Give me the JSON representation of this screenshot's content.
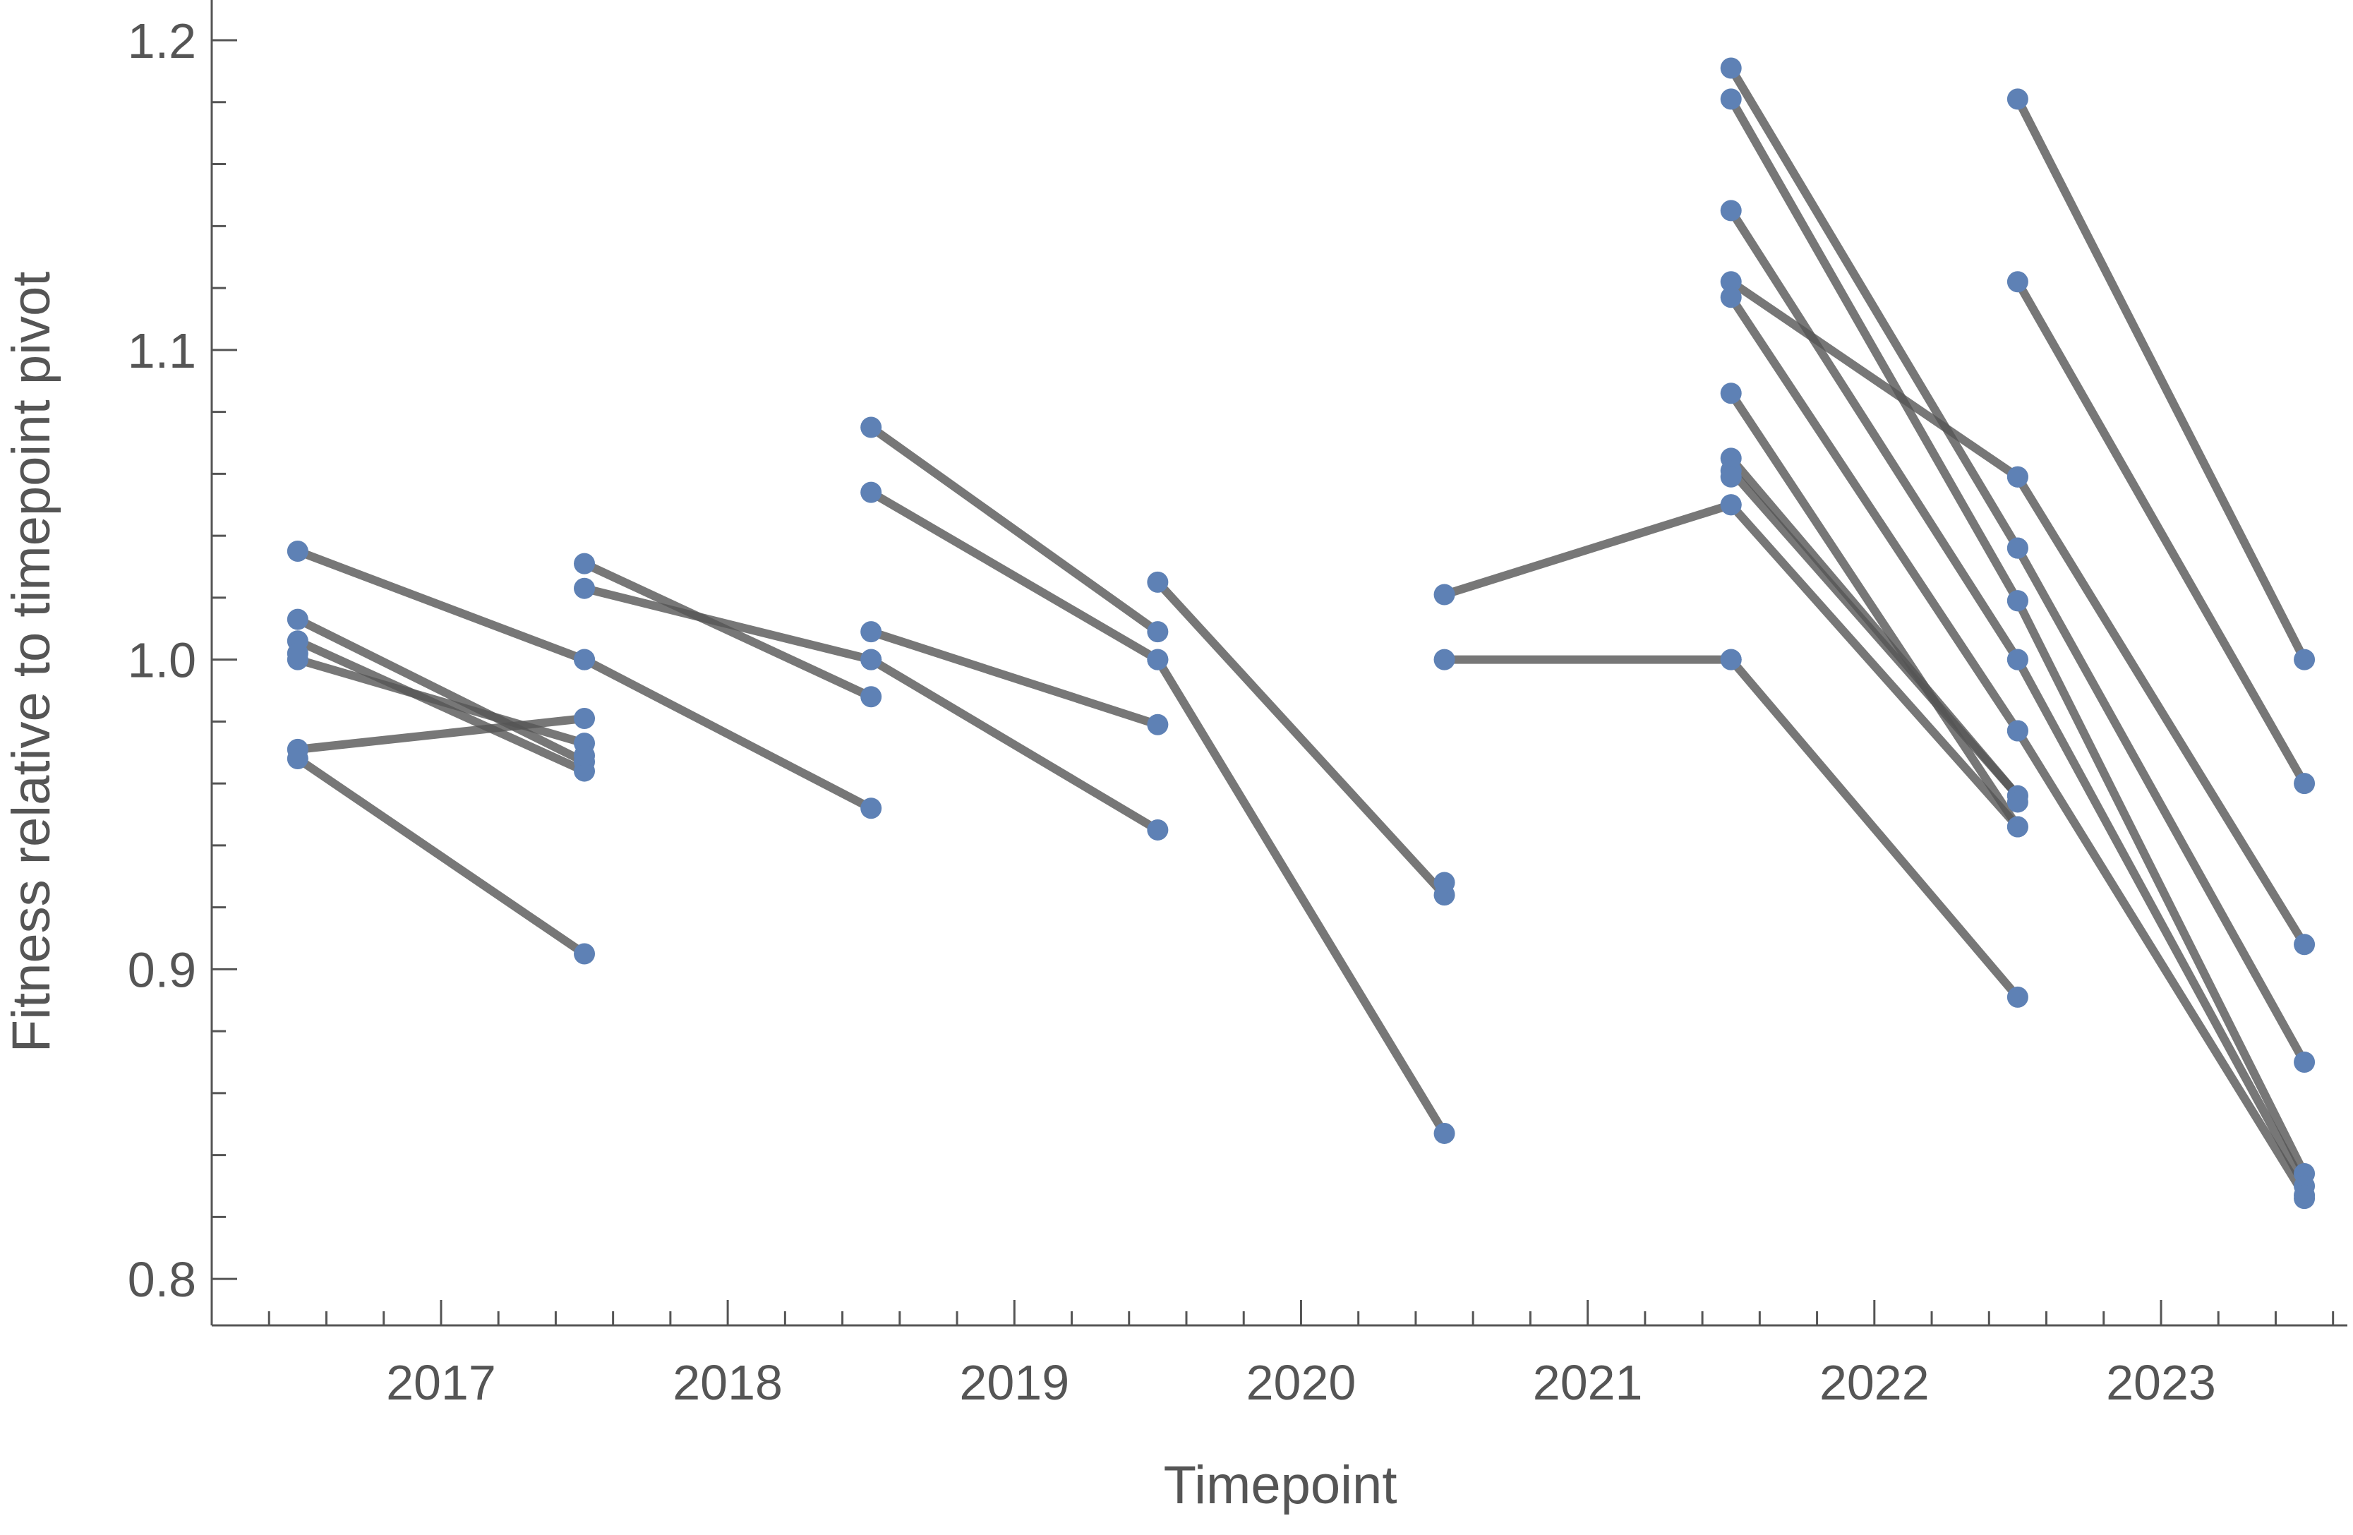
{
  "chart_data": {
    "type": "line",
    "xlabel": "Timepoint",
    "ylabel": "Fitness relative to timepoint pivot",
    "xlim": [
      2016.2,
      2023.65
    ],
    "ylim": [
      0.785,
      1.213
    ],
    "x_ticks": [
      2017,
      2018,
      2019,
      2020,
      2021,
      2022,
      2023
    ],
    "y_ticks": [
      0.8,
      0.9,
      1.0,
      1.1,
      1.2
    ],
    "y_tick_labels": [
      "0.8",
      "0.9",
      "1.0",
      "1.1",
      "1.2"
    ],
    "grid": false,
    "legend": "none",
    "colors": {
      "line": "#555555",
      "point": "#5e81b5",
      "axis": "#555555"
    },
    "segments": [
      {
        "x": [
          2016.5,
          2017.5
        ],
        "y": [
          1.035,
          1.0
        ]
      },
      {
        "x": [
          2016.5,
          2017.5
        ],
        "y": [
          1.013,
          0.967
        ]
      },
      {
        "x": [
          2016.5,
          2017.5
        ],
        "y": [
          1.006,
          0.964
        ]
      },
      {
        "x": [
          2016.5,
          2017.5
        ],
        "y": [
          1.0,
          0.973
        ]
      },
      {
        "x": [
          2016.5,
          2017.5
        ],
        "y": [
          0.971,
          0.981
        ]
      },
      {
        "x": [
          2016.5,
          2017.5
        ],
        "y": [
          0.968,
          0.905
        ]
      },
      {
        "x": [
          2017.5,
          2018.5
        ],
        "y": [
          1.031,
          0.988
        ]
      },
      {
        "x": [
          2017.5,
          2018.5
        ],
        "y": [
          1.023,
          1.0
        ]
      },
      {
        "x": [
          2017.5,
          2018.5
        ],
        "y": [
          1.0,
          0.952
        ]
      },
      {
        "x": [
          2018.5,
          2019.5
        ],
        "y": [
          1.075,
          1.009
        ]
      },
      {
        "x": [
          2018.5,
          2019.5
        ],
        "y": [
          1.054,
          1.0
        ]
      },
      {
        "x": [
          2018.5,
          2019.5
        ],
        "y": [
          1.009,
          0.979
        ]
      },
      {
        "x": [
          2018.5,
          2019.5
        ],
        "y": [
          1.0,
          0.945
        ]
      },
      {
        "x": [
          2019.5,
          2020.5
        ],
        "y": [
          1.025,
          0.924
        ]
      },
      {
        "x": [
          2019.5,
          2020.5
        ],
        "y": [
          1.0,
          0.847
        ]
      },
      {
        "x": [
          2020.5,
          2021.5
        ],
        "y": [
          1.021,
          1.05
        ]
      },
      {
        "x": [
          2020.5,
          2021.5
        ],
        "y": [
          1.0,
          1.0
        ]
      },
      {
        "x": [
          2021.5,
          2022.5
        ],
        "y": [
          1.191,
          1.036
        ]
      },
      {
        "x": [
          2021.5,
          2022.5
        ],
        "y": [
          1.181,
          1.019
        ]
      },
      {
        "x": [
          2021.5,
          2022.5
        ],
        "y": [
          1.145,
          1.0
        ]
      },
      {
        "x": [
          2021.5,
          2022.5
        ],
        "y": [
          1.122,
          1.059
        ]
      },
      {
        "x": [
          2021.5,
          2022.5
        ],
        "y": [
          1.117,
          0.977
        ]
      },
      {
        "x": [
          2021.5,
          2022.5
        ],
        "y": [
          1.086,
          0.946
        ]
      },
      {
        "x": [
          2021.5,
          2022.5
        ],
        "y": [
          1.065,
          0.956
        ]
      },
      {
        "x": [
          2021.5,
          2022.5
        ],
        "y": [
          1.061,
          0.956
        ]
      },
      {
        "x": [
          2021.5,
          2022.5
        ],
        "y": [
          1.05,
          0.946
        ]
      },
      {
        "x": [
          2021.5,
          2022.5
        ],
        "y": [
          1.0,
          0.891
        ]
      },
      {
        "x": [
          2022.5,
          2023.5
        ],
        "y": [
          1.181,
          1.0
        ]
      },
      {
        "x": [
          2022.5,
          2023.5
        ],
        "y": [
          1.122,
          0.96
        ]
      },
      {
        "x": [
          2022.5,
          2023.5
        ],
        "y": [
          1.059,
          0.908
        ]
      },
      {
        "x": [
          2022.5,
          2023.5
        ],
        "y": [
          1.036,
          0.87
        ]
      },
      {
        "x": [
          2022.5,
          2023.5
        ],
        "y": [
          1.019,
          0.834
        ]
      },
      {
        "x": [
          2022.5,
          2023.5
        ],
        "y": [
          1.0,
          0.83
        ]
      },
      {
        "x": [
          2022.5,
          2023.5
        ],
        "y": [
          0.977,
          0.827
        ]
      }
    ],
    "extra_points": [
      {
        "x": 2016.5,
        "y": 1.002
      },
      {
        "x": 2017.5,
        "y": 0.969
      },
      {
        "x": 2020.5,
        "y": 0.928
      },
      {
        "x": 2021.5,
        "y": 1.059
      },
      {
        "x": 2022.5,
        "y": 0.954
      },
      {
        "x": 2023.5,
        "y": 0.826
      }
    ]
  }
}
